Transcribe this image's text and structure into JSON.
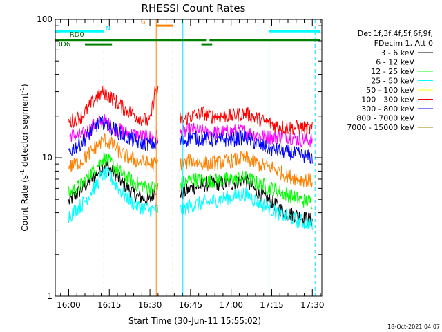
{
  "chart_data": {
    "type": "line",
    "title": "RHESSI Count Rates",
    "xlabel": "Start Time (30-Jun-11 15:55:02)",
    "ylabel_main": "Count Rate (s",
    "ylabel_sup1": "-1",
    "ylabel_mid": " detector segment",
    "ylabel_sup2": "-1",
    "ylabel_end": ")",
    "y_scale": "log",
    "ylim": [
      1,
      100
    ],
    "xlim": [
      "15:55:02",
      "17:33:30"
    ],
    "x_ticks": [
      {
        "t": "16:00",
        "label": "16:00"
      },
      {
        "t": "16:15",
        "label": "16:15"
      },
      {
        "t": "16:30",
        "label": "16:30"
      },
      {
        "t": "16:45",
        "label": "16:45"
      },
      {
        "t": "17:00",
        "label": "17:00"
      },
      {
        "t": "17:15",
        "label": "17:15"
      },
      {
        "t": "17:30",
        "label": "17:30"
      }
    ],
    "y_ticks": [
      {
        "v": 1,
        "label": "1"
      },
      {
        "v": 10,
        "label": "10"
      },
      {
        "v": 100,
        "label": "100"
      }
    ],
    "legend": {
      "position": "right",
      "header_line1": "Det 1f,3f,4f,5f,6f,9f,",
      "header_line2": "FDecim 1, Att 0"
    },
    "series": [
      {
        "name": "3 - 6 keV",
        "color": "#000000",
        "values": [
          [
            "16:00",
            4.8
          ],
          [
            "16:05",
            6.0
          ],
          [
            "16:10",
            7.5
          ],
          [
            "16:13",
            9.0
          ],
          [
            "16:16",
            8.0
          ],
          [
            "16:20",
            6.5
          ],
          [
            "16:25",
            5.3
          ],
          [
            "16:30",
            4.9
          ],
          [
            "16:32",
            6.0
          ],
          [
            "16:42",
            5.5
          ],
          [
            "16:45",
            6.0
          ],
          [
            "16:52",
            6.5
          ],
          [
            "17:00",
            6.5
          ],
          [
            "17:05",
            7.0
          ],
          [
            "17:10",
            5.5
          ],
          [
            "17:15",
            4.8
          ],
          [
            "17:20",
            4.0
          ],
          [
            "17:25",
            3.8
          ],
          [
            "17:30",
            3.5
          ]
        ]
      },
      {
        "name": "6 - 12 keV",
        "color": "#ff00ff",
        "values": [
          [
            "16:00",
            14.5
          ],
          [
            "16:05",
            14.5
          ],
          [
            "16:10",
            17.5
          ],
          [
            "16:13",
            18.5
          ],
          [
            "16:16",
            16.5
          ],
          [
            "16:20",
            15.5
          ],
          [
            "16:25",
            14.5
          ],
          [
            "16:30",
            14.0
          ],
          [
            "16:42",
            15.0
          ],
          [
            "16:45",
            16.0
          ],
          [
            "16:52",
            15.0
          ],
          [
            "17:00",
            15.5
          ],
          [
            "17:05",
            15.5
          ],
          [
            "17:10",
            14.5
          ],
          [
            "17:15",
            14.0
          ],
          [
            "17:20",
            14.5
          ],
          [
            "17:25",
            13.5
          ],
          [
            "17:30",
            13.5
          ]
        ]
      },
      {
        "name": "12 - 25 keV",
        "color": "#00ff00",
        "values": [
          [
            "16:00",
            5.5
          ],
          [
            "16:05",
            6.5
          ],
          [
            "16:10",
            8.5
          ],
          [
            "16:13",
            10.0
          ],
          [
            "16:16",
            9.0
          ],
          [
            "16:20",
            7.5
          ],
          [
            "16:25",
            6.5
          ],
          [
            "16:30",
            6.0
          ],
          [
            "16:42",
            6.5
          ],
          [
            "16:45",
            7.0
          ],
          [
            "16:52",
            6.8
          ],
          [
            "17:00",
            7.0
          ],
          [
            "17:05",
            7.2
          ],
          [
            "17:10",
            6.5
          ],
          [
            "17:15",
            6.0
          ],
          [
            "17:20",
            5.5
          ],
          [
            "17:25",
            5.0
          ],
          [
            "17:30",
            4.8
          ]
        ]
      },
      {
        "name": "25 - 50 keV",
        "color": "#00ffff",
        "values": [
          [
            "16:00",
            3.8
          ],
          [
            "16:05",
            4.6
          ],
          [
            "16:10",
            6.3
          ],
          [
            "16:13",
            7.8
          ],
          [
            "16:16",
            7.0
          ],
          [
            "16:20",
            5.5
          ],
          [
            "16:25",
            4.5
          ],
          [
            "16:30",
            4.2
          ],
          [
            "16:42",
            4.2
          ],
          [
            "16:45",
            4.5
          ],
          [
            "16:52",
            4.8
          ],
          [
            "17:00",
            5.2
          ],
          [
            "17:05",
            5.5
          ],
          [
            "17:10",
            4.8
          ],
          [
            "17:15",
            4.2
          ],
          [
            "17:20",
            3.8
          ],
          [
            "17:25",
            3.5
          ],
          [
            "17:30",
            3.3
          ]
        ]
      },
      {
        "name": "50 - 100 keV",
        "color": "#ffff00",
        "values": []
      },
      {
        "name": "100 - 300 keV",
        "color": "#ff0000",
        "values": [
          [
            "16:00",
            18.0
          ],
          [
            "16:05",
            20.0
          ],
          [
            "16:10",
            27.0
          ],
          [
            "16:13",
            30.0
          ],
          [
            "16:16",
            27.0
          ],
          [
            "16:20",
            23.0
          ],
          [
            "16:25",
            20.0
          ],
          [
            "16:30",
            18.0
          ],
          [
            "16:32",
            31.0
          ],
          [
            "16:42",
            18.5
          ],
          [
            "16:45",
            20.0
          ],
          [
            "16:50",
            21.0
          ],
          [
            "16:52",
            20.0
          ],
          [
            "17:00",
            20.0
          ],
          [
            "17:05",
            21.0
          ],
          [
            "17:10",
            19.0
          ],
          [
            "17:15",
            17.5
          ],
          [
            "17:20",
            16.5
          ],
          [
            "17:25",
            16.5
          ],
          [
            "17:30",
            16.0
          ]
        ]
      },
      {
        "name": "300 - 800 keV",
        "color": "#0000ff",
        "values": [
          [
            "16:00",
            11.0
          ],
          [
            "16:05",
            13.0
          ],
          [
            "16:10",
            17.0
          ],
          [
            "16:13",
            18.0
          ],
          [
            "16:16",
            16.5
          ],
          [
            "16:20",
            14.5
          ],
          [
            "16:25",
            13.0
          ],
          [
            "16:30",
            12.5
          ],
          [
            "16:42",
            13.0
          ],
          [
            "16:45",
            14.0
          ],
          [
            "16:52",
            13.5
          ],
          [
            "17:00",
            13.5
          ],
          [
            "17:05",
            14.0
          ],
          [
            "17:10",
            12.5
          ],
          [
            "17:15",
            11.5
          ],
          [
            "17:20",
            11.0
          ],
          [
            "17:25",
            10.5
          ],
          [
            "17:30",
            10.0
          ]
        ]
      },
      {
        "name": "800 - 7000 keV",
        "color": "#ff8000",
        "values": [
          [
            "16:00",
            8.5
          ],
          [
            "16:05",
            9.5
          ],
          [
            "16:10",
            12.0
          ],
          [
            "16:13",
            13.5
          ],
          [
            "16:16",
            12.5
          ],
          [
            "16:20",
            10.5
          ],
          [
            "16:25",
            9.5
          ],
          [
            "16:30",
            9.0
          ],
          [
            "16:42",
            9.0
          ],
          [
            "16:45",
            9.5
          ],
          [
            "16:52",
            9.0
          ],
          [
            "17:00",
            9.5
          ],
          [
            "17:05",
            10.0
          ],
          [
            "17:10",
            9.0
          ],
          [
            "17:15",
            8.5
          ],
          [
            "17:20",
            7.5
          ],
          [
            "17:25",
            7.0
          ],
          [
            "17:30",
            6.8
          ]
        ]
      },
      {
        "name": "7000 - 15000 keV",
        "color": "#a08000",
        "values": []
      }
    ],
    "gaps": [
      [
        "16:33",
        "16:41"
      ]
    ],
    "vlines": [
      {
        "t": "15:55:40",
        "color": "#00e0ff",
        "style": "solid"
      },
      {
        "t": "16:13:00",
        "color": "#00e0ff",
        "style": "dashed"
      },
      {
        "t": "16:32:20",
        "color": "#ff8000",
        "style": "solid"
      },
      {
        "t": "16:38:30",
        "color": "#ff8000",
        "style": "dashed"
      },
      {
        "t": "16:42:10",
        "color": "#00e0ff",
        "style": "solid"
      },
      {
        "t": "17:14:00",
        "color": "#00e0ff",
        "style": "solid"
      },
      {
        "t": "17:31:00",
        "color": "#00e0ff",
        "style": "dashed"
      }
    ],
    "annotations": [
      {
        "label": "N",
        "color": "#00e0ff",
        "t": "16:14:30",
        "v": 83
      },
      {
        "label": "S",
        "color": "#ff8000",
        "t": "16:27:30",
        "v": 93
      },
      {
        "label": "RD0",
        "color": "#006400",
        "t": "16:03",
        "v": 75
      },
      {
        "label": "RD6",
        "color": "#006400",
        "t": "15:58",
        "v": 64
      }
    ],
    "bars": [
      {
        "color": "#00ffff",
        "from": "15:55:02",
        "to": "16:13:00",
        "v": 82
      },
      {
        "color": "#00ffff",
        "from": "17:14:00",
        "to": "17:33:00",
        "v": 82
      },
      {
        "color": "#ff8000",
        "from": "16:32:20",
        "to": "16:38:30",
        "v": 90
      },
      {
        "color": "#008000",
        "from": "15:55:02",
        "to": "16:32:20",
        "v": 71
      },
      {
        "color": "#008000",
        "from": "16:32:20",
        "to": "16:51:00",
        "v": 71
      },
      {
        "color": "#008000",
        "from": "16:52:00",
        "to": "17:33:00",
        "v": 71
      },
      {
        "color": "#008000",
        "from": "16:06:00",
        "to": "16:16:00",
        "v": 66
      },
      {
        "color": "#008000",
        "from": "16:49:00",
        "to": "16:53:00",
        "v": 66
      }
    ]
  },
  "timestamp": "18-Oct-2021 04:07"
}
